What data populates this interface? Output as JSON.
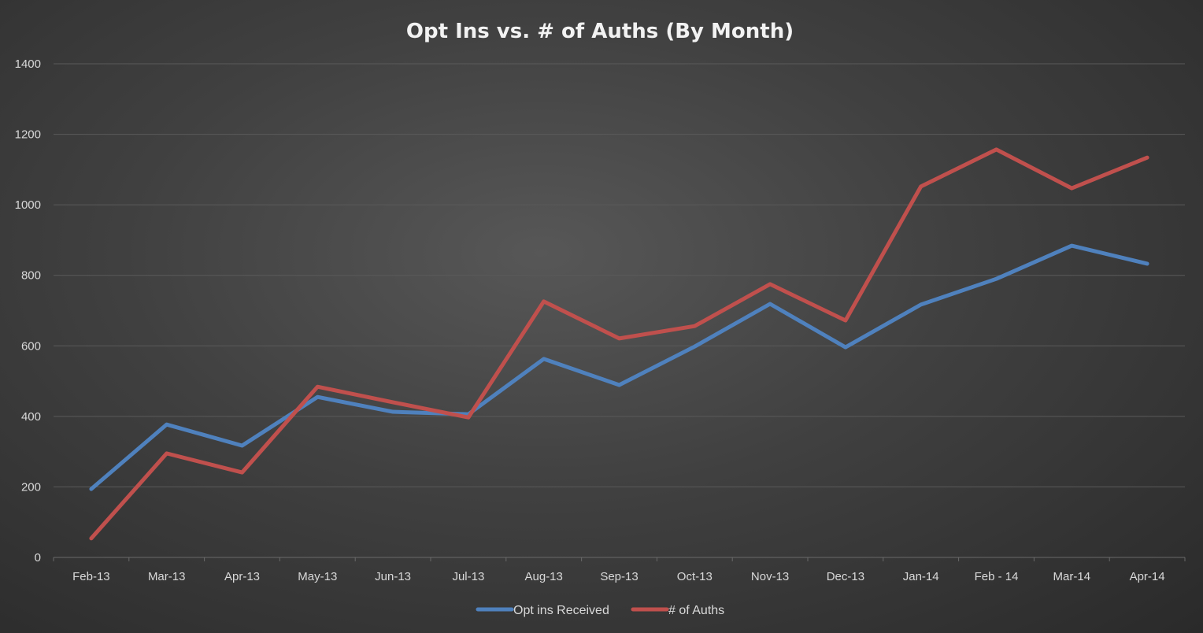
{
  "chart_data": {
    "type": "line",
    "title": "Opt Ins vs. # of Auths (By Month)",
    "xlabel": "",
    "ylabel": "",
    "categories": [
      "Feb-13",
      "Mar-13",
      "Apr-13",
      "May-13",
      "Jun-13",
      "Jul-13",
      "Aug-13",
      "Sep-13",
      "Oct-13",
      "Nov-13",
      "Dec-13",
      "Jan-14",
      "Feb - 14",
      "Mar-14",
      "Apr-14"
    ],
    "ylim": [
      0,
      1400
    ],
    "yticks": [
      "0",
      "200",
      "400",
      "600",
      "800",
      "1000",
      "1200",
      "1400"
    ],
    "grid": true,
    "legend": "bottom",
    "series": [
      {
        "name": "Opt ins Received",
        "color": "#4f81bd",
        "values": [
          194,
          377,
          317,
          455,
          413,
          406,
          563,
          489,
          598,
          719,
          596,
          717,
          790,
          884,
          833
        ]
      },
      {
        "name": "# of Auths",
        "color": "#c0504d",
        "values": [
          54,
          295,
          241,
          484,
          440,
          397,
          726,
          621,
          656,
          775,
          672,
          1052,
          1157,
          1047,
          1134
        ]
      }
    ]
  }
}
